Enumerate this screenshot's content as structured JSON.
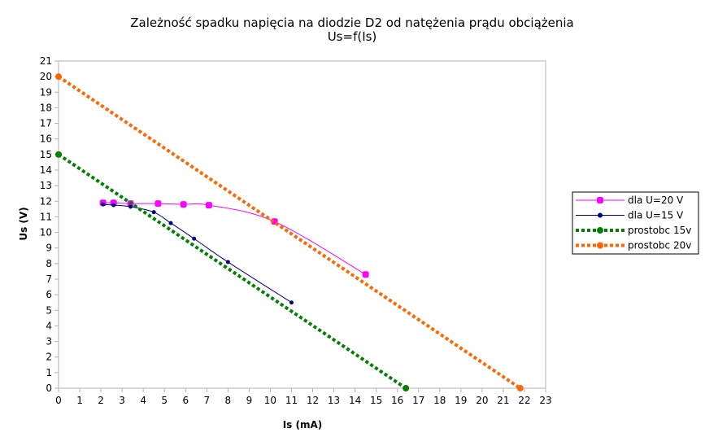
{
  "chart_data": {
    "type": "scatter",
    "title": "Zależność spadku napięcia na diodzie D2 od natężenia prądu obciążenia",
    "subtitle": "Us=f(Is)",
    "xlabel": "Is (mA)",
    "ylabel": "Us (V)",
    "xlim": [
      0,
      23
    ],
    "ylim": [
      0,
      21
    ],
    "xticks": [
      "0",
      "1",
      "2",
      "3",
      "4",
      "5",
      "6",
      "7",
      "8",
      "9",
      "10",
      "11",
      "12",
      "13",
      "14",
      "15",
      "16",
      "17",
      "18",
      "19",
      "20",
      "21",
      "22",
      "23"
    ],
    "yticks": [
      "0",
      "1",
      "2",
      "3",
      "4",
      "5",
      "6",
      "7",
      "8",
      "9",
      "10",
      "11",
      "12",
      "13",
      "14",
      "15",
      "16",
      "17",
      "18",
      "19",
      "20",
      "21"
    ],
    "grid": false,
    "legend_position": "right",
    "series": [
      {
        "name": "dla U=20 V",
        "color": "#ff00ff",
        "line": "smooth",
        "marker": "square",
        "points": [
          [
            2.1,
            11.9
          ],
          [
            2.6,
            11.9
          ],
          [
            3.4,
            11.85
          ],
          [
            4.7,
            11.85
          ],
          [
            5.9,
            11.8
          ],
          [
            7.1,
            11.75
          ],
          [
            10.2,
            10.7
          ],
          [
            14.5,
            7.3
          ]
        ]
      },
      {
        "name": "dla U=15 V",
        "color": "#000080",
        "line": "smooth",
        "marker": "circle",
        "points": [
          [
            2.1,
            11.8
          ],
          [
            2.6,
            11.75
          ],
          [
            3.4,
            11.65
          ],
          [
            4.5,
            11.3
          ],
          [
            5.3,
            10.6
          ],
          [
            6.4,
            9.6
          ],
          [
            8.0,
            8.1
          ],
          [
            11.0,
            5.5
          ]
        ]
      },
      {
        "name": "prostobc 15v",
        "color": "#008000",
        "line": "dotted",
        "marker": "circle",
        "points": [
          [
            0,
            15
          ],
          [
            16.4,
            0
          ]
        ]
      },
      {
        "name": "prostobc 20v",
        "color": "#ff6600",
        "line": "dotted",
        "marker": "circle",
        "points": [
          [
            0,
            20
          ],
          [
            21.8,
            0
          ]
        ]
      }
    ]
  }
}
